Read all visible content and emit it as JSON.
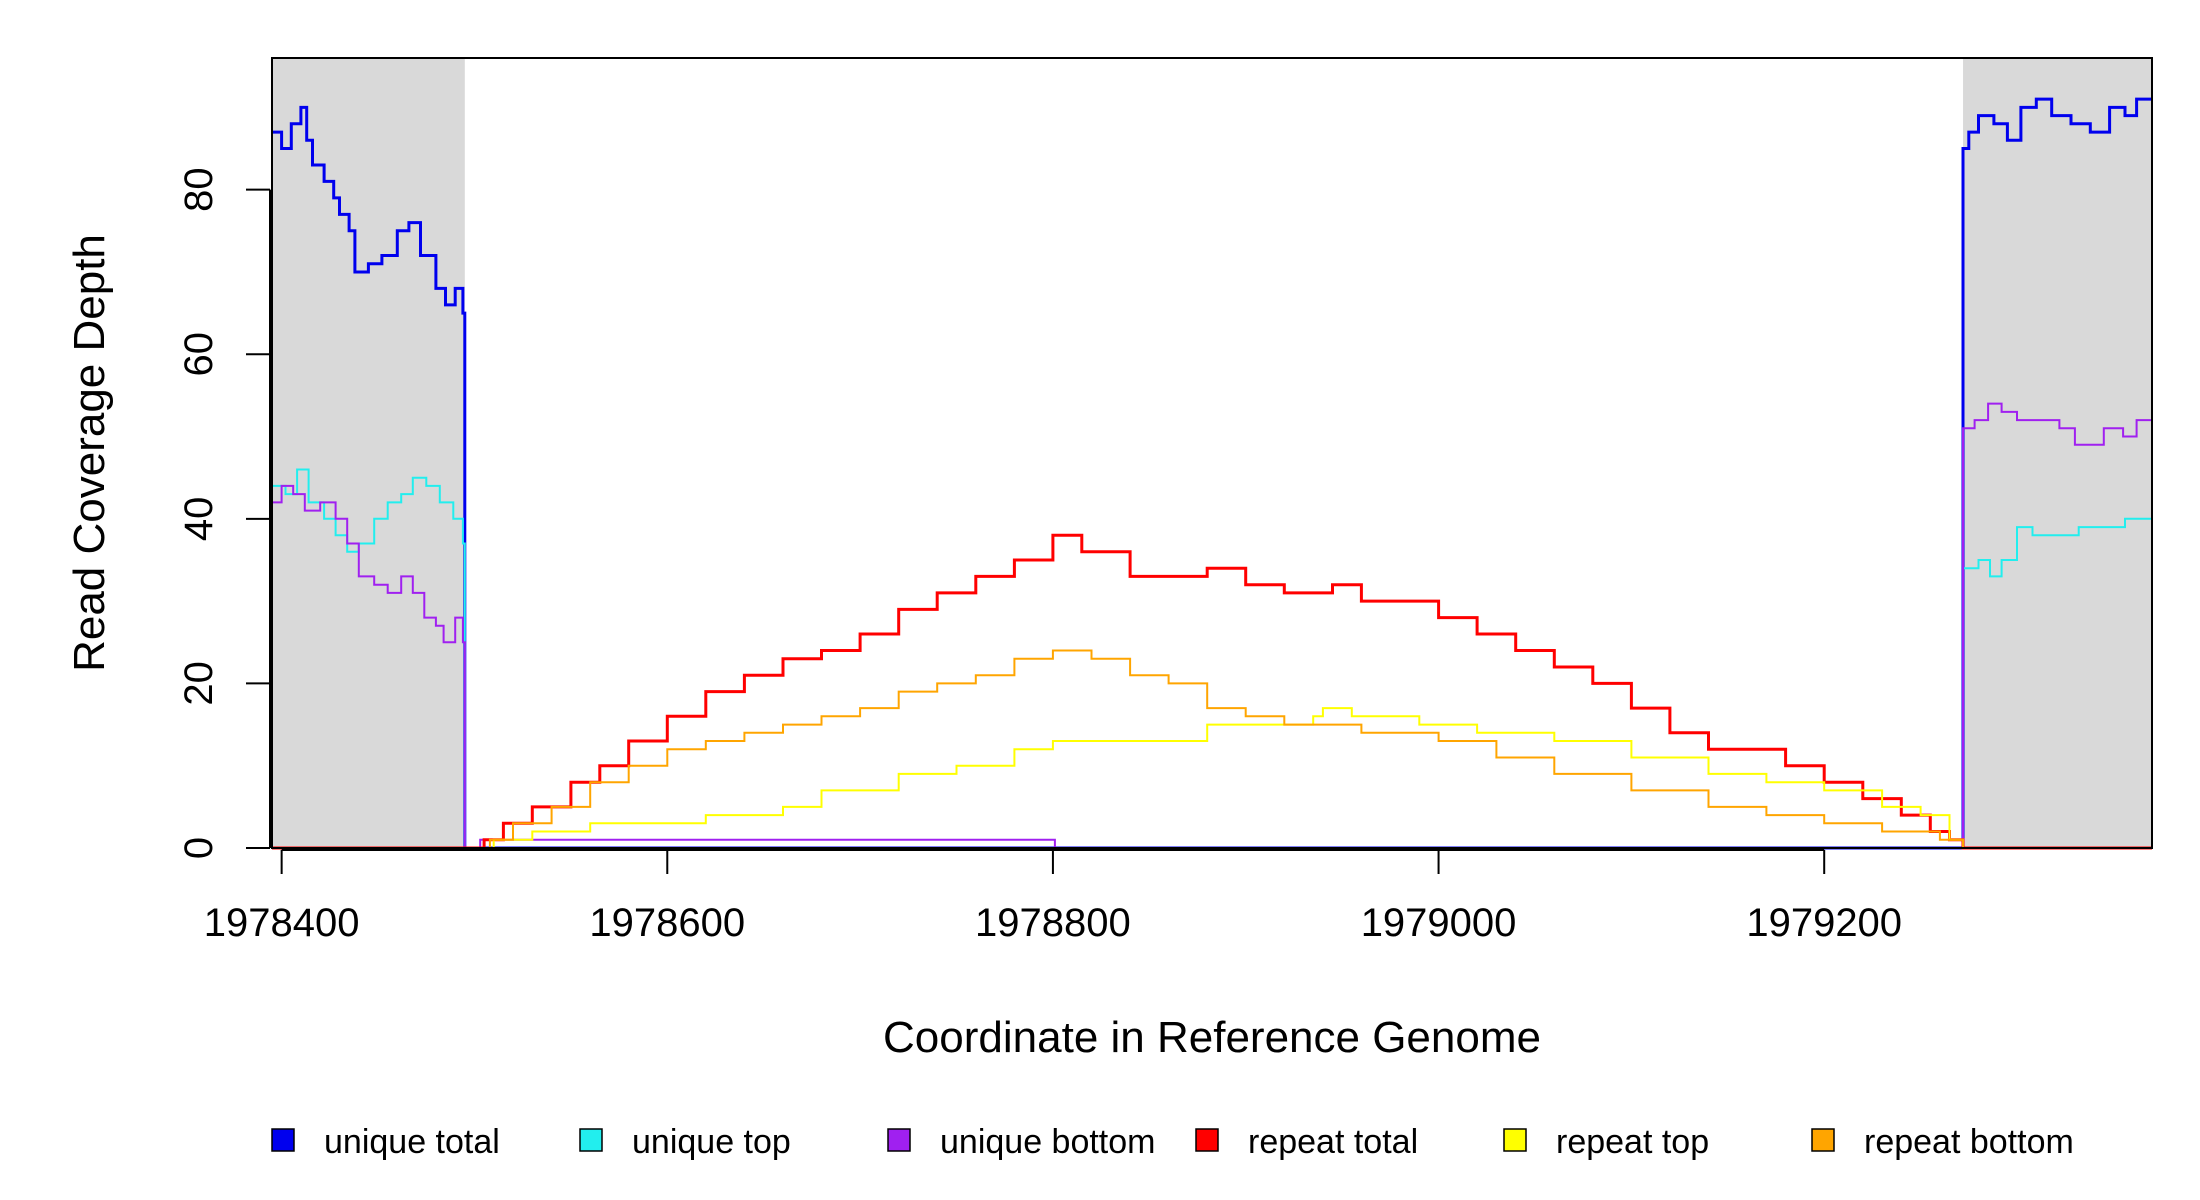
{
  "chart_data": {
    "type": "line",
    "xlabel": "Coordinate in Reference Genome",
    "ylabel": "Read Coverage Depth",
    "xlim": [
      1978395,
      1979370
    ],
    "ylim": [
      0,
      96
    ],
    "x_ticks": [
      1978400,
      1978600,
      1978800,
      1979000,
      1979200
    ],
    "x_tick_labels": [
      "1978400",
      "1978600",
      "1978800",
      "1979000",
      "1979200"
    ],
    "y_ticks": [
      0,
      20,
      40,
      60,
      80
    ],
    "y_tick_labels": [
      "0",
      "20",
      "40",
      "60",
      "80"
    ],
    "shaded_regions": [
      {
        "x0": 1978395,
        "x1": 1978495,
        "color": "#d9d9d9"
      },
      {
        "x0": 1979272,
        "x1": 1979370,
        "color": "#d9d9d9"
      }
    ],
    "legend_position": "bottom",
    "series": [
      {
        "name": "unique total",
        "color": "#0000ee",
        "width": 3,
        "points": [
          [
            1978395,
            87
          ],
          [
            1978400,
            85
          ],
          [
            1978405,
            88
          ],
          [
            1978410,
            90
          ],
          [
            1978413,
            86
          ],
          [
            1978416,
            83
          ],
          [
            1978422,
            81
          ],
          [
            1978427,
            79
          ],
          [
            1978430,
            77
          ],
          [
            1978435,
            75
          ],
          [
            1978438,
            70
          ],
          [
            1978445,
            71
          ],
          [
            1978452,
            72
          ],
          [
            1978460,
            75
          ],
          [
            1978466,
            76
          ],
          [
            1978472,
            72
          ],
          [
            1978480,
            68
          ],
          [
            1978485,
            66
          ],
          [
            1978490,
            68
          ],
          [
            1978494,
            65
          ],
          [
            1978495,
            0
          ],
          [
            1978800,
            0
          ],
          [
            1979271,
            0
          ],
          [
            1979272,
            85
          ],
          [
            1979275,
            87
          ],
          [
            1979280,
            89
          ],
          [
            1979288,
            88
          ],
          [
            1979295,
            86
          ],
          [
            1979302,
            90
          ],
          [
            1979310,
            91
          ],
          [
            1979318,
            89
          ],
          [
            1979328,
            88
          ],
          [
            1979338,
            87
          ],
          [
            1979348,
            90
          ],
          [
            1979356,
            89
          ],
          [
            1979362,
            91
          ],
          [
            1979370,
            91
          ]
        ]
      },
      {
        "name": "unique top",
        "color": "#22eeee",
        "width": 2,
        "points": [
          [
            1978395,
            44
          ],
          [
            1978402,
            43
          ],
          [
            1978408,
            46
          ],
          [
            1978414,
            42
          ],
          [
            1978422,
            40
          ],
          [
            1978428,
            38
          ],
          [
            1978434,
            36
          ],
          [
            1978440,
            37
          ],
          [
            1978448,
            40
          ],
          [
            1978455,
            42
          ],
          [
            1978462,
            43
          ],
          [
            1978468,
            45
          ],
          [
            1978475,
            44
          ],
          [
            1978482,
            42
          ],
          [
            1978489,
            40
          ],
          [
            1978494,
            37
          ],
          [
            1978495,
            0
          ],
          [
            1978800,
            0
          ],
          [
            1979271,
            0
          ],
          [
            1979272,
            34
          ],
          [
            1979280,
            35
          ],
          [
            1979286,
            33
          ],
          [
            1979292,
            35
          ],
          [
            1979300,
            39
          ],
          [
            1979308,
            38
          ],
          [
            1979320,
            38
          ],
          [
            1979332,
            39
          ],
          [
            1979345,
            39
          ],
          [
            1979356,
            40
          ],
          [
            1979362,
            40
          ],
          [
            1979370,
            39
          ]
        ]
      },
      {
        "name": "unique bottom",
        "color": "#a020f0",
        "width": 2,
        "points": [
          [
            1978395,
            42
          ],
          [
            1978400,
            44
          ],
          [
            1978406,
            43
          ],
          [
            1978412,
            41
          ],
          [
            1978420,
            42
          ],
          [
            1978428,
            40
          ],
          [
            1978434,
            37
          ],
          [
            1978440,
            33
          ],
          [
            1978448,
            32
          ],
          [
            1978455,
            31
          ],
          [
            1978462,
            33
          ],
          [
            1978468,
            31
          ],
          [
            1978474,
            28
          ],
          [
            1978480,
            27
          ],
          [
            1978484,
            25
          ],
          [
            1978490,
            28
          ],
          [
            1978494,
            25
          ],
          [
            1978495,
            0
          ],
          [
            1978503,
            1
          ],
          [
            1978800,
            1
          ],
          [
            1978801,
            0
          ],
          [
            1979271,
            0
          ],
          [
            1979272,
            51
          ],
          [
            1979278,
            52
          ],
          [
            1979285,
            54
          ],
          [
            1979292,
            53
          ],
          [
            1979300,
            52
          ],
          [
            1979312,
            52
          ],
          [
            1979322,
            51
          ],
          [
            1979330,
            49
          ],
          [
            1979345,
            51
          ],
          [
            1979355,
            50
          ],
          [
            1979362,
            52
          ],
          [
            1979370,
            52
          ]
        ]
      },
      {
        "name": "repeat total",
        "color": "#ff0000",
        "width": 3,
        "points": [
          [
            1978395,
            0
          ],
          [
            1978500,
            0
          ],
          [
            1978505,
            1
          ],
          [
            1978515,
            3
          ],
          [
            1978530,
            5
          ],
          [
            1978550,
            8
          ],
          [
            1978565,
            10
          ],
          [
            1978580,
            13
          ],
          [
            1978600,
            16
          ],
          [
            1978620,
            19
          ],
          [
            1978640,
            21
          ],
          [
            1978660,
            23
          ],
          [
            1978680,
            24
          ],
          [
            1978700,
            26
          ],
          [
            1978720,
            29
          ],
          [
            1978740,
            31
          ],
          [
            1978760,
            33
          ],
          [
            1978780,
            35
          ],
          [
            1978800,
            38
          ],
          [
            1978815,
            36
          ],
          [
            1978840,
            33
          ],
          [
            1978860,
            33
          ],
          [
            1978880,
            34
          ],
          [
            1978900,
            32
          ],
          [
            1978920,
            31
          ],
          [
            1978940,
            31
          ],
          [
            1978945,
            32
          ],
          [
            1978960,
            30
          ],
          [
            1978980,
            30
          ],
          [
            1979000,
            28
          ],
          [
            1979020,
            26
          ],
          [
            1979040,
            24
          ],
          [
            1979060,
            22
          ],
          [
            1979080,
            20
          ],
          [
            1979100,
            17
          ],
          [
            1979120,
            14
          ],
          [
            1979140,
            12
          ],
          [
            1979160,
            12
          ],
          [
            1979180,
            10
          ],
          [
            1979200,
            8
          ],
          [
            1979220,
            6
          ],
          [
            1979240,
            4
          ],
          [
            1979255,
            2
          ],
          [
            1979265,
            1
          ],
          [
            1979271,
            1
          ],
          [
            1979272,
            0
          ],
          [
            1979370,
            0
          ]
        ]
      },
      {
        "name": "repeat top",
        "color": "#ffff00",
        "width": 2,
        "points": [
          [
            1978395,
            0
          ],
          [
            1978500,
            0
          ],
          [
            1978510,
            1
          ],
          [
            1978530,
            2
          ],
          [
            1978560,
            3
          ],
          [
            1978600,
            3
          ],
          [
            1978620,
            4
          ],
          [
            1978660,
            5
          ],
          [
            1978680,
            7
          ],
          [
            1978720,
            9
          ],
          [
            1978750,
            10
          ],
          [
            1978780,
            12
          ],
          [
            1978800,
            13
          ],
          [
            1978820,
            13
          ],
          [
            1978860,
            13
          ],
          [
            1978880,
            15
          ],
          [
            1978900,
            15
          ],
          [
            1978920,
            15
          ],
          [
            1978935,
            16
          ],
          [
            1978940,
            17
          ],
          [
            1978955,
            16
          ],
          [
            1978970,
            16
          ],
          [
            1978990,
            15
          ],
          [
            1979020,
            14
          ],
          [
            1979060,
            13
          ],
          [
            1979100,
            11
          ],
          [
            1979140,
            9
          ],
          [
            1979170,
            8
          ],
          [
            1979200,
            7
          ],
          [
            1979230,
            5
          ],
          [
            1979250,
            4
          ],
          [
            1979265,
            1
          ],
          [
            1979271,
            1
          ],
          [
            1979272,
            0
          ],
          [
            1979370,
            0
          ]
        ]
      },
      {
        "name": "repeat bottom",
        "color": "#ffa500",
        "width": 2,
        "points": [
          [
            1978395,
            0
          ],
          [
            1978500,
            0
          ],
          [
            1978508,
            1
          ],
          [
            1978520,
            3
          ],
          [
            1978540,
            5
          ],
          [
            1978560,
            8
          ],
          [
            1978580,
            10
          ],
          [
            1978600,
            12
          ],
          [
            1978620,
            13
          ],
          [
            1978640,
            14
          ],
          [
            1978660,
            15
          ],
          [
            1978680,
            16
          ],
          [
            1978700,
            17
          ],
          [
            1978720,
            19
          ],
          [
            1978740,
            20
          ],
          [
            1978760,
            21
          ],
          [
            1978780,
            23
          ],
          [
            1978800,
            24
          ],
          [
            1978820,
            23
          ],
          [
            1978840,
            21
          ],
          [
            1978860,
            20
          ],
          [
            1978880,
            17
          ],
          [
            1978900,
            16
          ],
          [
            1978920,
            15
          ],
          [
            1978940,
            15
          ],
          [
            1978960,
            14
          ],
          [
            1978980,
            14
          ],
          [
            1979000,
            13
          ],
          [
            1979030,
            11
          ],
          [
            1979060,
            9
          ],
          [
            1979100,
            7
          ],
          [
            1979140,
            5
          ],
          [
            1979170,
            4
          ],
          [
            1979200,
            3
          ],
          [
            1979230,
            2
          ],
          [
            1979260,
            1
          ],
          [
            1979271,
            1
          ],
          [
            1979272,
            0
          ],
          [
            1979370,
            0
          ]
        ]
      }
    ]
  }
}
